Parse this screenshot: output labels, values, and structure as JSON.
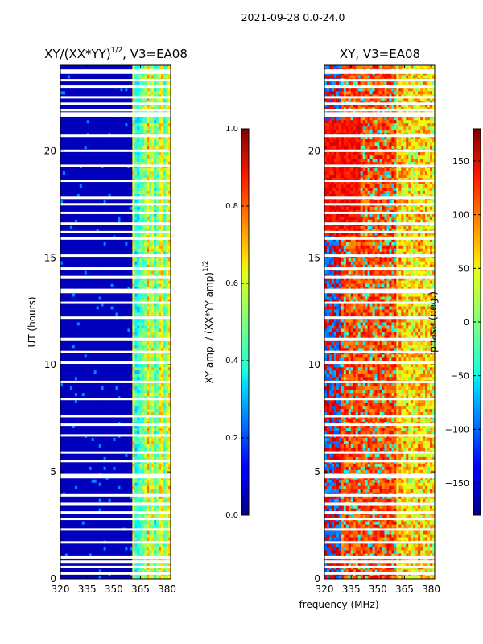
{
  "suptitle": "2021-09-28 0.0-24.0",
  "colors": {
    "background": "#ffffff",
    "blank_row": "#ffffff",
    "axis": "#000000"
  },
  "chart_data": [
    {
      "type": "heatmap",
      "colormap": "jet",
      "title_main": "XY/(XX*YY)",
      "title_sup": "1/2",
      "title_tail": ", V3=EA08",
      "xlabel": "",
      "ylabel": "UT (hours)",
      "xlim": [
        320,
        382
      ],
      "ylim": [
        0,
        24
      ],
      "xticks": [
        320,
        335,
        350,
        365,
        380
      ],
      "yticks": [
        0,
        5,
        10,
        15,
        20
      ],
      "description_of_values": "amplitude ratio; low (~0.05) below ~360 MHz, high and banded (0.3-0.7) from ~360 to 382 MHz",
      "colorbar": {
        "label_main": "XY amp. / (XX*YY amp)",
        "label_sup": "1/2",
        "range": [
          0.0,
          1.0
        ],
        "ticks": [
          "0.0",
          "0.2",
          "0.4",
          "0.6",
          "0.8",
          "1.0"
        ]
      }
    },
    {
      "type": "heatmap",
      "colormap": "jet",
      "title_main": "XY, V3=EA08",
      "title_sup": "",
      "title_tail": "",
      "xlabel": "frequency (MHz)",
      "ylabel": "",
      "xlim": [
        320,
        382
      ],
      "ylim": [
        0,
        24
      ],
      "xticks": [
        320,
        335,
        350,
        365,
        380
      ],
      "yticks": [
        0,
        5,
        10,
        15,
        20
      ],
      "description_of_values": "phase in degrees; mixed blue/cyan at low frequencies, red/orange 330-360 MHz, yellow/green near 365-382 MHz",
      "colorbar": {
        "label_main": "phase (deg.)",
        "label_sup": "",
        "range": [
          -180,
          180
        ],
        "ticks": [
          "150",
          "100",
          "50",
          "0",
          "−50",
          "−100",
          "−150"
        ],
        "tick_values": [
          150,
          100,
          50,
          0,
          -50,
          -100,
          -150
        ]
      }
    }
  ],
  "flagged_hours": [
    0.25,
    0.55,
    0.8,
    1.0,
    1.7,
    2.3,
    2.8,
    3.1,
    3.5,
    3.9,
    4.75,
    4.85,
    5.5,
    5.9,
    6.7,
    7.2,
    7.6,
    8.4,
    9.2,
    10.1,
    10.6,
    11.2,
    12.2,
    12.9,
    13.4,
    13.5,
    14.1,
    14.5,
    15.1,
    15.9,
    16.2,
    16.6,
    17.1,
    17.5,
    17.8,
    18.6,
    19.3,
    20.0,
    20.7,
    21.65,
    21.75,
    21.9,
    22.2,
    22.5,
    23.0,
    23.3,
    23.65,
    23.75
  ]
}
